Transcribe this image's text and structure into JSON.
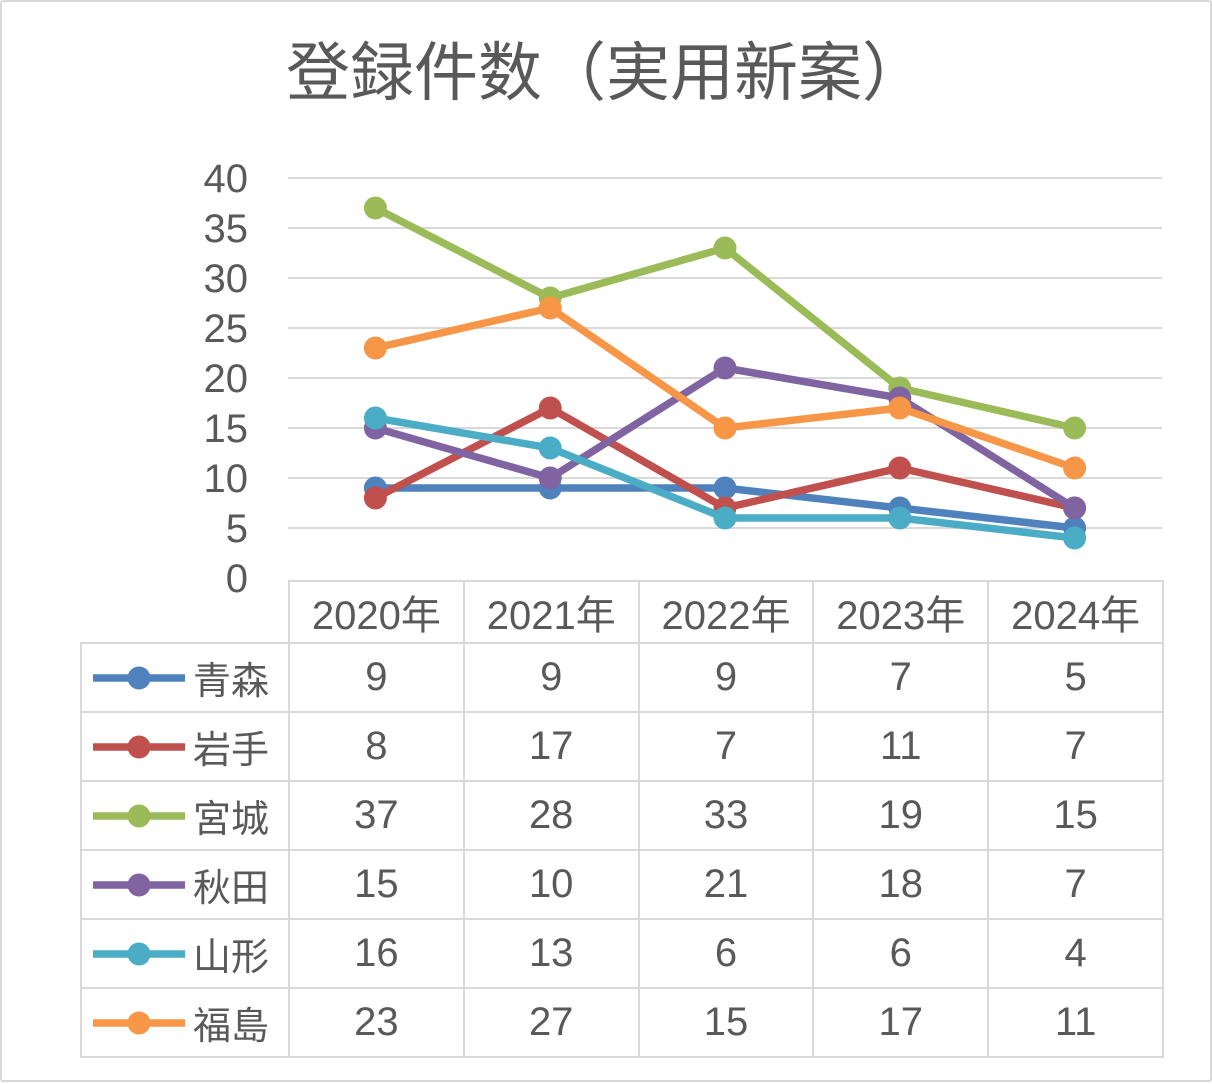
{
  "chart_data": {
    "type": "line",
    "title": "登録件数（実用新案）",
    "categories": [
      "2020年",
      "2021年",
      "2022年",
      "2023年",
      "2024年"
    ],
    "series": [
      {
        "id": "aomori",
        "name": "青森",
        "color": "#4F81BD",
        "values": [
          9,
          9,
          9,
          7,
          5
        ]
      },
      {
        "id": "iwate",
        "name": "岩手",
        "color": "#C0504D",
        "values": [
          8,
          17,
          7,
          11,
          7
        ]
      },
      {
        "id": "miyagi",
        "name": "宮城",
        "color": "#9BBB59",
        "values": [
          37,
          28,
          33,
          19,
          15
        ]
      },
      {
        "id": "akita",
        "name": "秋田",
        "color": "#8064A2",
        "values": [
          15,
          10,
          21,
          18,
          7
        ]
      },
      {
        "id": "yamagata",
        "name": "山形",
        "color": "#4BACC6",
        "values": [
          16,
          13,
          6,
          6,
          4
        ]
      },
      {
        "id": "fukushima",
        "name": "福島",
        "color": "#F79646",
        "values": [
          23,
          27,
          15,
          17,
          11
        ]
      }
    ],
    "ylim": [
      0,
      40
    ],
    "yticks": [
      0,
      5,
      10,
      15,
      20,
      25,
      30,
      35,
      40
    ],
    "grid": "horizontal",
    "legend_position": "table-left",
    "axis_text_color": "#595959",
    "grid_color": "#D9D9D9",
    "frame_color": "#D8D8D8"
  }
}
